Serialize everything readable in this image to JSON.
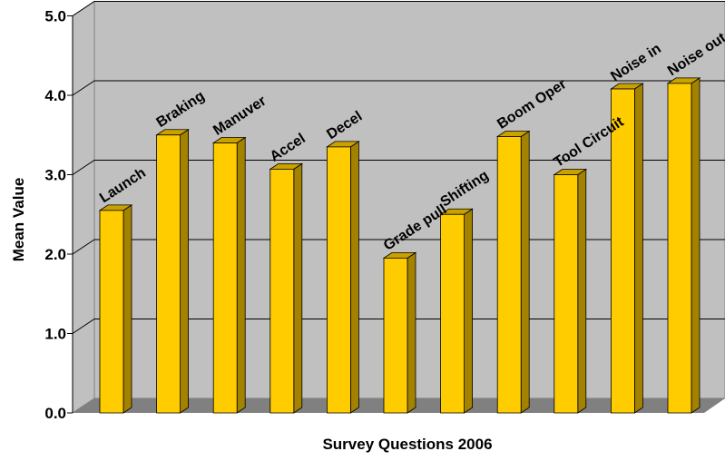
{
  "chart_data": {
    "type": "bar",
    "categories": [
      "Launch",
      "Braking",
      "Manuver",
      "Accel",
      "Decel",
      "Grade pull",
      "Shifting",
      "Boom Oper",
      "Tool Circuit",
      "Noise in",
      "Noise out"
    ],
    "values": [
      2.55,
      3.5,
      3.4,
      3.07,
      3.35,
      1.95,
      2.5,
      3.48,
      3.0,
      4.08,
      4.15
    ],
    "title": "",
    "xlabel": "Survey Questions 2006",
    "ylabel": "Mean Value",
    "ylim": [
      0,
      5
    ],
    "yticks": [
      "0.0",
      "1.0",
      "2.0",
      "3.0",
      "4.0",
      "5.0"
    ],
    "grid": true,
    "legend": "none",
    "three_d": true,
    "colors": {
      "bar_front": "#FFCC00",
      "bar_side": "#A38200",
      "bar_top": "#C9A200",
      "wall": "#C0C0C0",
      "floor": "#808080",
      "gridline": "#000000"
    }
  }
}
